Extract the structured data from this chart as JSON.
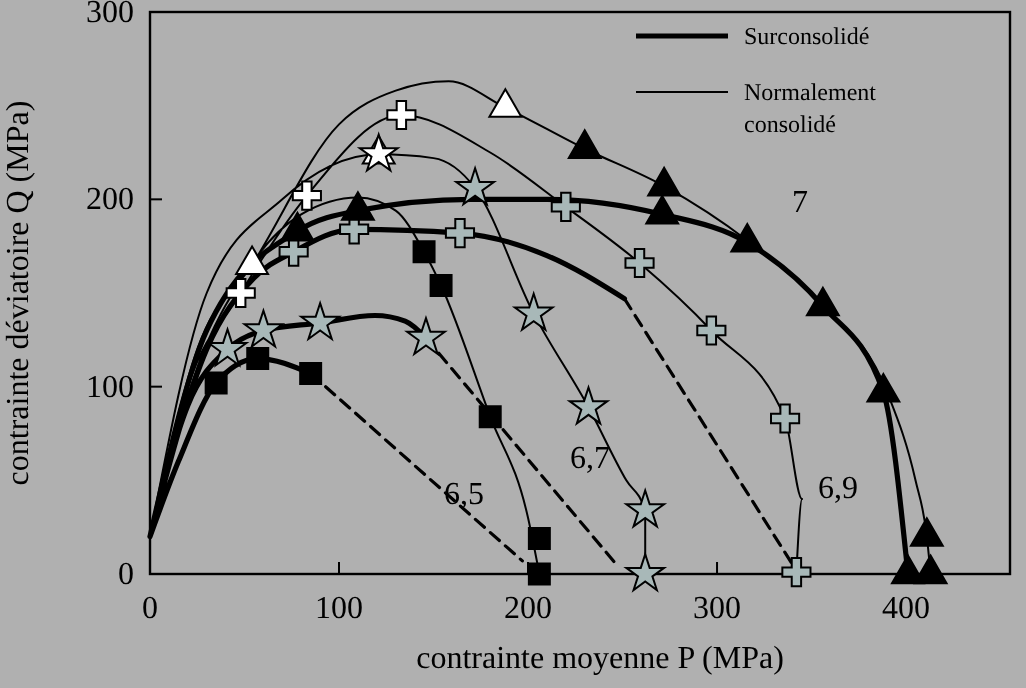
{
  "chart_data": {
    "type": "line",
    "xlabel": "contrainte moyenne P (MPa)",
    "ylabel": "contrainte déviatoire Q (MPa)",
    "xlim": [
      0,
      455
    ],
    "ylim": [
      0,
      300
    ],
    "xticks": [
      0,
      100,
      200,
      300,
      400
    ],
    "yticks": [
      0,
      100,
      200,
      300
    ],
    "grid": false,
    "legend": "top right",
    "series": [
      {
        "name": "Surconsolidé",
        "color": "#000000",
        "line_style": "solid",
        "marker": "none",
        "x": [
          0,
          15,
          35,
          57,
          85,
          null,
          0,
          20,
          41,
          60,
          90,
          119,
          135,
          146,
          null,
          0,
          30,
          55,
          76,
          108,
          164,
          210,
          251,
          null,
          0,
          30,
          78,
          110,
          170,
          210,
          271,
          316,
          356,
          388,
          401
        ],
        "values": [
          20,
          60,
          102,
          115,
          107,
          null,
          20,
          90,
          120,
          130,
          134,
          138,
          135,
          126,
          null,
          20,
          120,
          158,
          172,
          184,
          182,
          170,
          147,
          null,
          20,
          130,
          183,
          194,
          200,
          200,
          192,
          177,
          143,
          97,
          0
        ]
      },
      {
        "name": "Normalement consolidé",
        "color": "#000000",
        "line_style": "solid",
        "marker": "none",
        "x": [
          0,
          25,
          50,
          80,
          110,
          130,
          145,
          154,
          180,
          200,
          206,
          null,
          0,
          30,
          70,
          121,
          150,
          172,
          203,
          232,
          252,
          262,
          262,
          null,
          0,
          20,
          48,
          83,
          133,
          180,
          220,
          259,
          297,
          336,
          345,
          342,
          null,
          0,
          25,
          54,
          100,
          130,
          158,
          188,
          230,
          272,
          316,
          356,
          390,
          405,
          411,
          413
        ],
        "values": [
          20,
          110,
          160,
          192,
          201,
          194,
          172,
          154,
          84,
          30,
          0,
          null,
          20,
          150,
          200,
          224,
          222,
          206,
          139,
          89,
          50,
          34,
          0,
          null,
          20,
          100,
          150,
          202,
          245,
          225,
          196,
          166,
          130,
          83,
          40,
          1,
          null,
          20,
          120,
          165,
          240,
          258,
          263,
          249,
          227,
          207,
          178,
          143,
          97,
          50,
          20,
          0
        ]
      },
      {
        "color": "#000000",
        "line_style": "dashed",
        "marker": "none",
        "x": [
          85,
          197,
          null,
          146,
          246,
          null,
          251,
          340
        ],
        "values": [
          107,
          7,
          null,
          126,
          6,
          null,
          147,
          5
        ]
      },
      {
        "type": "scatter",
        "color": "#000000",
        "marker": "square",
        "x": [
          35,
          57,
          85,
          145,
          154,
          180,
          206,
          206
        ],
        "values": [
          102,
          115,
          107,
          172,
          154,
          84,
          19,
          0
        ]
      },
      {
        "type": "scatter",
        "color": "#a8b8b8",
        "marker": "star",
        "x": [
          41,
          60,
          90,
          146,
          172,
          203,
          232,
          262,
          262
        ],
        "values": [
          120,
          130,
          134,
          126,
          206,
          139,
          89,
          34,
          0
        ]
      },
      {
        "type": "scatter",
        "color": "#a8b8b8",
        "marker": "cross",
        "x": [
          76,
          108,
          164,
          220,
          259,
          297,
          336,
          342
        ],
        "values": [
          172,
          184,
          182,
          196,
          166,
          130,
          83,
          1
        ]
      },
      {
        "type": "scatter",
        "color": "#ffffff",
        "marker": "cross",
        "x": [
          48,
          83,
          133
        ],
        "values": [
          150,
          202,
          245
        ]
      },
      {
        "type": "scatter",
        "color": "#000000",
        "marker": "triangle",
        "x": [
          78,
          110,
          271,
          316,
          356,
          388,
          401,
          230,
          272,
          411,
          413
        ],
        "values": [
          183,
          194,
          192,
          177,
          143,
          97,
          0,
          227,
          207,
          20,
          0
        ]
      },
      {
        "type": "scatter",
        "color": "#ffffff",
        "marker": "triangle",
        "x": [
          54,
          121,
          188
        ],
        "values": [
          165,
          224,
          249
        ]
      },
      {
        "type": "scatter",
        "color": "#ffffff",
        "marker": "star",
        "x": [
          121
        ],
        "values": [
          224
        ]
      }
    ],
    "annotations": [
      "6,5",
      "6,7",
      "6,9",
      "7"
    ]
  }
}
